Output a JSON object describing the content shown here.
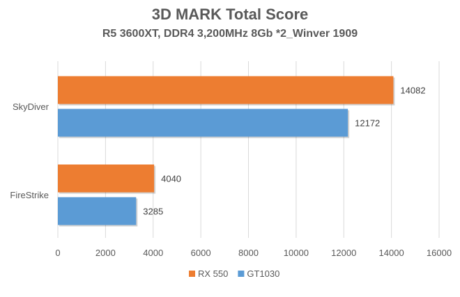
{
  "chart_data": {
    "type": "bar",
    "orientation": "horizontal",
    "title": "3D MARK Total Score",
    "subtitle": "R5 3600XT, DDR4 3,200MHz 8Gb *2_Winver 1909",
    "categories": [
      "SkyDiver",
      "FireStrike"
    ],
    "series": [
      {
        "name": "RX 550",
        "color": "#ED7D31",
        "values": [
          14082,
          4040
        ]
      },
      {
        "name": "GT1030",
        "color": "#5B9BD5",
        "values": [
          12172,
          3285
        ]
      }
    ],
    "xlim": [
      0,
      16000
    ],
    "xticks": [
      0,
      2000,
      4000,
      6000,
      8000,
      10000,
      12000,
      14000,
      16000
    ],
    "grid": true,
    "legend_position": "bottom"
  }
}
